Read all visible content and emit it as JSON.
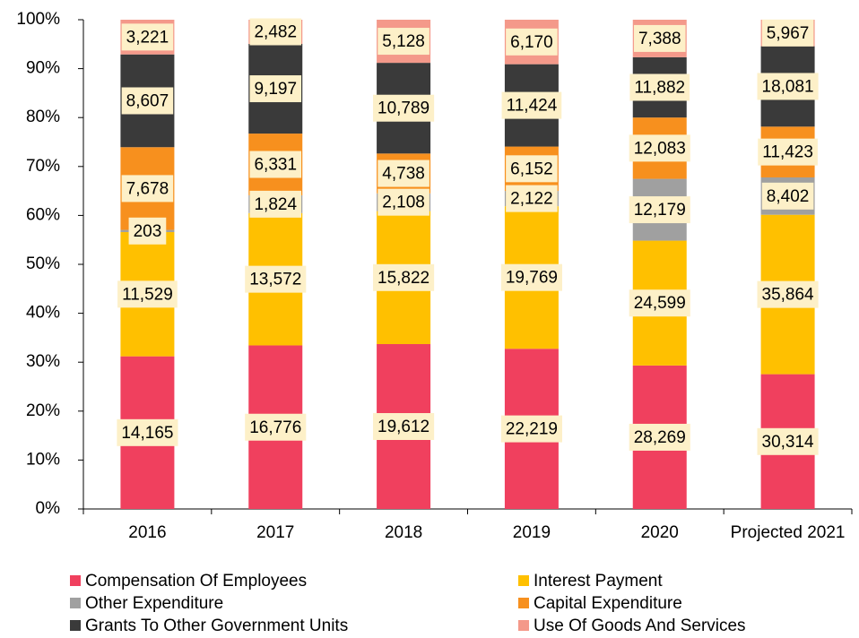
{
  "chart_data": {
    "type": "stacked_percent_bar",
    "categories": [
      "2016",
      "2017",
      "2018",
      "2019",
      "2020",
      "Projected 2021"
    ],
    "series": [
      {
        "name": "Compensation Of Employees",
        "color": "#f0405e",
        "values": [
          14165,
          16776,
          19612,
          22219,
          28269,
          30314
        ],
        "value_labels": [
          "14,165",
          "16,776",
          "19,612",
          "22,219",
          "28,269",
          "30,314"
        ]
      },
      {
        "name": "Interest Payment",
        "color": "#ffc000",
        "values": [
          11529,
          13572,
          15822,
          19769,
          24599,
          35864
        ],
        "value_labels": [
          "11,529",
          "13,572",
          "15,822",
          "19,769",
          "24,599",
          "35,864"
        ]
      },
      {
        "name": "Other Expenditure",
        "color": "#a0a0a0",
        "values": [
          203,
          1824,
          2108,
          2122,
          12179,
          8402
        ],
        "value_labels": [
          "203",
          "1,824",
          "2,108",
          "2,122",
          "12,179",
          "8,402"
        ]
      },
      {
        "name": "Capital Expenditure",
        "color": "#f7901e",
        "values": [
          7678,
          6331,
          4738,
          6152,
          12083,
          11423
        ],
        "value_labels": [
          "7,678",
          "6,331",
          "4,738",
          "6,152",
          "12,083",
          "11,423"
        ]
      },
      {
        "name": "Grants To Other Government Units",
        "color": "#3a3a3a",
        "values": [
          8607,
          9197,
          10789,
          11424,
          11882,
          18081
        ],
        "value_labels": [
          "8,607",
          "9,197",
          "10,789",
          "11,424",
          "11,882",
          "18,081"
        ]
      },
      {
        "name": "Use Of Goods And Services",
        "color": "#f4998a",
        "values": [
          3221,
          2482,
          5128,
          6170,
          7388,
          5967
        ],
        "value_labels": [
          "3,221",
          "2,482",
          "5,128",
          "6,170",
          "7,388",
          "5,967"
        ]
      }
    ],
    "ylim": [
      0,
      100
    ],
    "yticks": [
      {
        "value": 0,
        "label": "0%"
      },
      {
        "value": 10,
        "label": "10%"
      },
      {
        "value": 20,
        "label": "20%"
      },
      {
        "value": 30,
        "label": "30%"
      },
      {
        "value": 40,
        "label": "40%"
      },
      {
        "value": 50,
        "label": "50%"
      },
      {
        "value": 60,
        "label": "60%"
      },
      {
        "value": 70,
        "label": "70%"
      },
      {
        "value": 80,
        "label": "80%"
      },
      {
        "value": 90,
        "label": "90%"
      },
      {
        "value": 100,
        "label": "100%"
      }
    ]
  }
}
